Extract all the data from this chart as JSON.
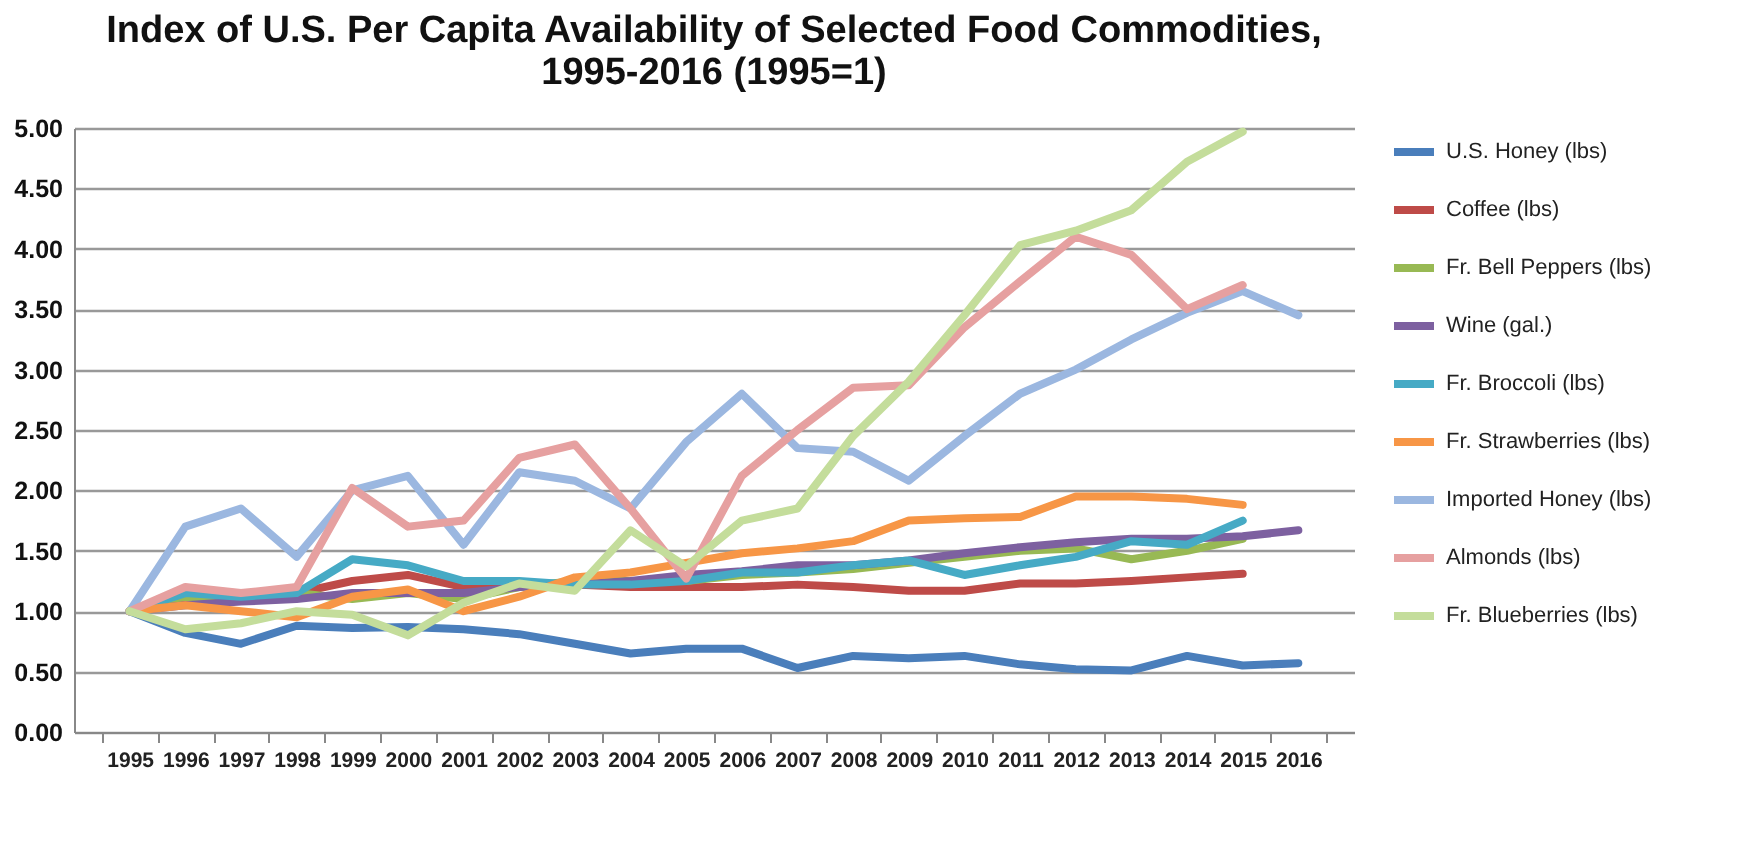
{
  "chart_data": {
    "type": "line",
    "title": "Index of U.S. Per Capita Availability of Selected Food Commodities, 1995-2016 (1995=1)",
    "categories": [
      "1995",
      "1996",
      "1997",
      "1998",
      "1999",
      "2000",
      "2001",
      "2002",
      "2003",
      "2004",
      "2005",
      "2006",
      "2007",
      "2008",
      "2009",
      "2010",
      "2011",
      "2012",
      "2013",
      "2014",
      "2015",
      "2016"
    ],
    "series": [
      {
        "name": "U.S. Honey (lbs)",
        "color": "#4a7ebb",
        "values": [
          1,
          0.82,
          0.73,
          0.88,
          0.86,
          0.87,
          0.85,
          0.81,
          0.73,
          0.65,
          0.69,
          0.69,
          0.53,
          0.63,
          0.61,
          0.63,
          0.56,
          0.52,
          0.51,
          0.63,
          0.55,
          0.57
        ]
      },
      {
        "name": "Coffee (lbs)",
        "color": "#be4b48",
        "values": [
          1,
          1.1,
          1.1,
          1.15,
          1.25,
          1.3,
          1.2,
          1.22,
          1.22,
          1.2,
          1.2,
          1.2,
          1.22,
          1.2,
          1.17,
          1.17,
          1.23,
          1.23,
          1.25,
          1.28,
          1.31,
          null
        ]
      },
      {
        "name": "Fr. Bell Peppers (lbs)",
        "color": "#98b954",
        "values": [
          1,
          1.12,
          1.1,
          1.15,
          1.1,
          1.15,
          1.1,
          1.2,
          1.25,
          1.25,
          1.25,
          1.3,
          1.32,
          1.35,
          1.4,
          1.45,
          1.5,
          1.52,
          1.43,
          1.5,
          1.6,
          null
        ]
      },
      {
        "name": "Wine (gal.)",
        "color": "#7d60a0",
        "values": [
          1,
          1.05,
          1.08,
          1.1,
          1.15,
          1.15,
          1.15,
          1.2,
          1.22,
          1.25,
          1.3,
          1.33,
          1.38,
          1.38,
          1.42,
          1.48,
          1.53,
          1.57,
          1.6,
          1.6,
          1.62,
          1.67
        ]
      },
      {
        "name": "Fr. Broccoli (lbs)",
        "color": "#46aac5",
        "values": [
          1,
          1.15,
          1.12,
          1.15,
          1.43,
          1.38,
          1.25,
          1.25,
          1.22,
          1.22,
          1.25,
          1.32,
          1.32,
          1.38,
          1.42,
          1.3,
          1.38,
          1.45,
          1.58,
          1.55,
          1.75,
          null
        ]
      },
      {
        "name": "Fr. Strawberries (lbs)",
        "color": "#f79646",
        "values": [
          1,
          1.05,
          1.0,
          0.95,
          1.12,
          1.18,
          1.0,
          1.12,
          1.28,
          1.32,
          1.4,
          1.48,
          1.52,
          1.58,
          1.75,
          1.77,
          1.78,
          1.95,
          1.95,
          1.93,
          1.88,
          null
        ]
      },
      {
        "name": "Imported Honey (lbs)",
        "color": "#9bb7e0",
        "values": [
          1,
          1.7,
          1.85,
          1.45,
          2.0,
          2.12,
          1.55,
          2.15,
          2.08,
          1.85,
          2.4,
          2.8,
          2.35,
          2.32,
          2.08,
          2.45,
          2.8,
          3.0,
          3.25,
          3.47,
          3.65,
          3.45
        ]
      },
      {
        "name": "Almonds (lbs)",
        "color": "#e6a0a0",
        "values": [
          1,
          1.2,
          1.15,
          1.2,
          2.02,
          1.7,
          1.75,
          2.27,
          2.38,
          1.85,
          1.27,
          2.12,
          2.5,
          2.85,
          2.87,
          3.35,
          3.73,
          4.1,
          3.95,
          3.5,
          3.7,
          null
        ]
      },
      {
        "name": "Fr. Blueberries (lbs)",
        "color": "#c4dd9b",
        "values": [
          1,
          0.85,
          0.9,
          1.0,
          0.97,
          0.8,
          1.07,
          1.23,
          1.17,
          1.67,
          1.37,
          1.75,
          1.85,
          2.45,
          2.9,
          3.45,
          4.03,
          4.15,
          4.32,
          4.72,
          4.97,
          null
        ]
      }
    ],
    "ylim": [
      0,
      5
    ],
    "yticks": [
      {
        "value": 0,
        "label": "0.00"
      },
      {
        "value": 0.5,
        "label": "0.50"
      },
      {
        "value": 1,
        "label": "1.00"
      },
      {
        "value": 1.5,
        "label": "1.50"
      },
      {
        "value": 2,
        "label": "2.00"
      },
      {
        "value": 2.5,
        "label": "2.50"
      },
      {
        "value": 3,
        "label": "3.00"
      },
      {
        "value": 3.5,
        "label": "3.50"
      },
      {
        "value": 4,
        "label": "4.00"
      },
      {
        "value": 4.5,
        "label": "4.50"
      },
      {
        "value": 5,
        "label": "5.00"
      }
    ],
    "grid": "y",
    "legend": "right",
    "marker": "none",
    "line_style": "solid"
  }
}
